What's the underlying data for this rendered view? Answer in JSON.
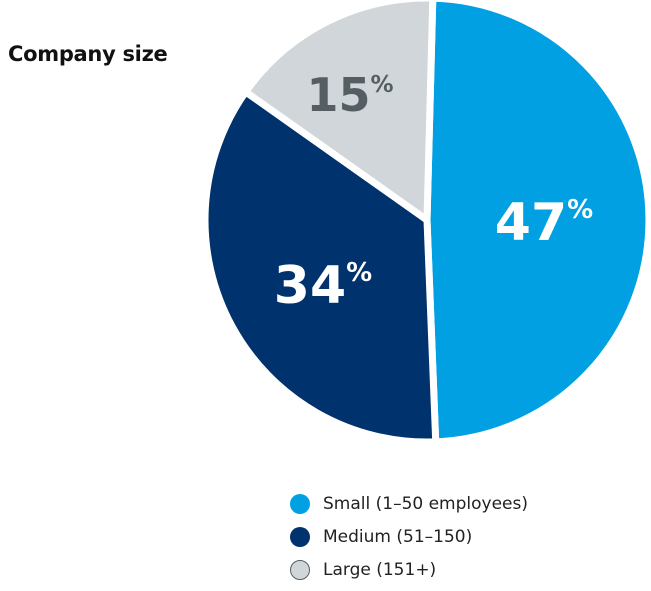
{
  "chart_data": {
    "type": "pie",
    "title": "Company size",
    "slices": [
      {
        "label": "Small (1–50 employees)",
        "value": 47,
        "display": "47",
        "color": "#00a0e2",
        "text_color": "#ffffff"
      },
      {
        "label": "Medium (51–150)",
        "value": 34,
        "display": "34",
        "color": "#00326e",
        "text_color": "#ffffff"
      },
      {
        "label": "Large (151+)",
        "value": 15,
        "display": "15",
        "color": "#d0d6d9",
        "text_color": "#555f63"
      }
    ],
    "unit": "%",
    "legend_position": "bottom-right"
  }
}
